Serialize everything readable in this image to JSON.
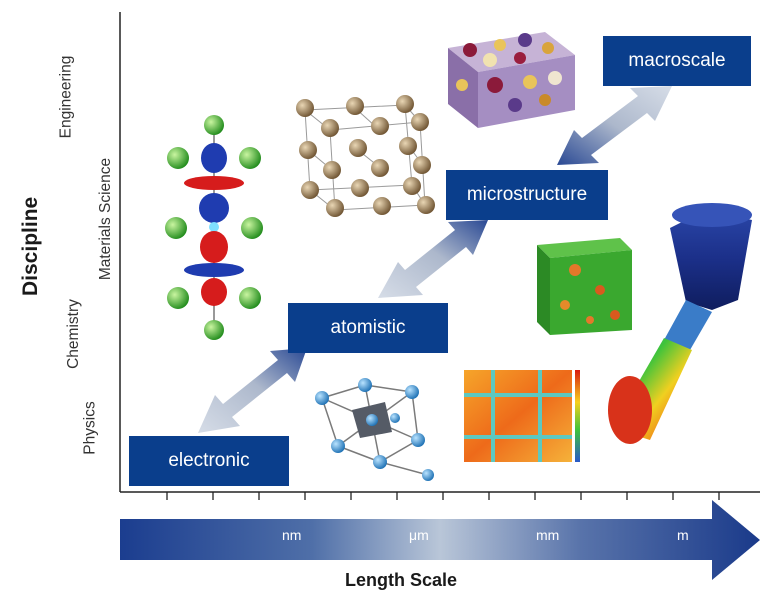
{
  "axes": {
    "y_title": "Discipline",
    "x_title": "Length Scale",
    "disciplines": [
      "Physics",
      "Chemistry",
      "Materials Science",
      "Engineering"
    ]
  },
  "scale_bar": {
    "ticks": [
      "nm",
      "μm",
      "mm",
      "m"
    ]
  },
  "boxes": {
    "electronic": "electronic",
    "atomistic": "atomistic",
    "microstructure": "microstructure",
    "macroscale": "macroscale"
  },
  "colors": {
    "box_fill": "#0a3e8c",
    "arrow_dark": "#1a3c8f",
    "arrow_light": "#c9d3e2"
  }
}
